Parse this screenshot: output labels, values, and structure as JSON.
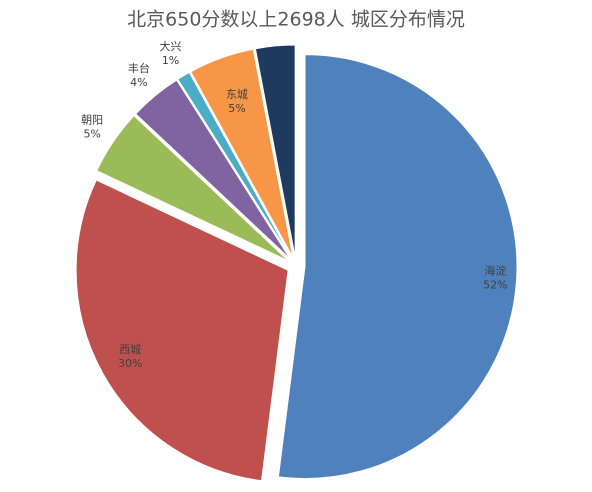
{
  "chart_data": {
    "type": "pie",
    "title": "北京650分数以上2698人 城区分布情况",
    "categories": [
      "海淀",
      "西城",
      "朝阳",
      "丰台",
      "大兴",
      "东城",
      null
    ],
    "values": [
      52,
      30,
      5,
      4,
      1,
      5,
      3
    ],
    "value_labels": [
      "52%",
      "30%",
      "5%",
      "4%",
      "1%",
      "5%",
      null
    ],
    "colors": [
      "#4f81bd",
      "#c0504d",
      "#9bbb59",
      "#8064a2",
      "#4bacc6",
      "#f79646",
      "#1f3a5f"
    ]
  }
}
